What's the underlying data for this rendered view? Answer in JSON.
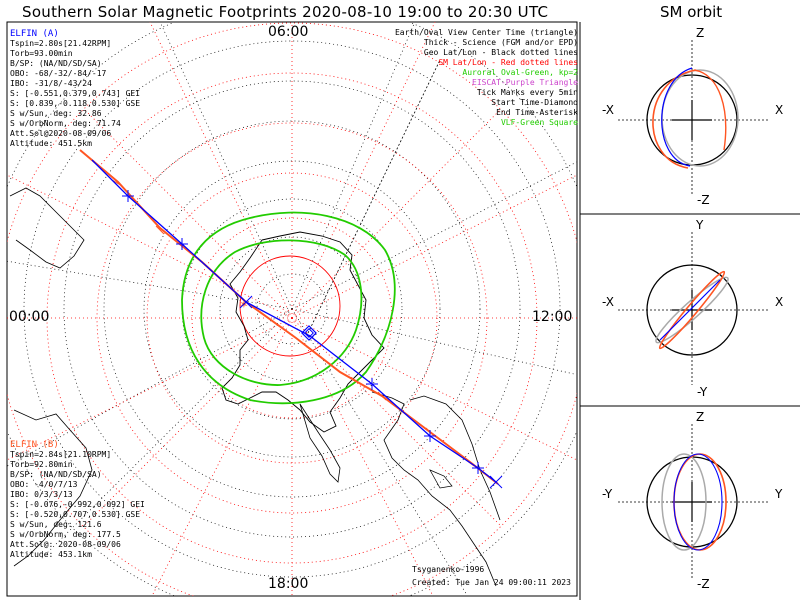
{
  "title": "Southern Solar Magnetic Footprints 2020-08-10 19:00 to 20:30 UTC",
  "sm_title": "SM orbit",
  "hours": {
    "top": "06:00",
    "left": "00:00",
    "right": "12:00",
    "bottom": "18:00"
  },
  "legend": [
    {
      "text": "Earth/Oval View Center Time (triangle)",
      "color": "#000000"
    },
    {
      "text": "Thick - Science (FGM and/or EPD)",
      "color": "#000000"
    },
    {
      "text": "Geo Lat/Lon - Black dotted lines",
      "color": "#000000"
    },
    {
      "text": "SM Lat/Lon - Red dotted lines",
      "color": "#ff0000"
    },
    {
      "text": "Auroral Oval-Green, kp=2",
      "color": "#22cc00"
    },
    {
      "text": "EISCAT-Purple Triangle",
      "color": "#cc44cc"
    },
    {
      "text": "Tick Marks every 5min",
      "color": "#000000"
    },
    {
      "text": "Start Time-Diamond",
      "color": "#000000"
    },
    {
      "text": "End Time-Asterisk",
      "color": "#000000"
    },
    {
      "text": "VLF-Green Square",
      "color": "#22cc00"
    }
  ],
  "elfin_a": {
    "name": "ELFIN (A)",
    "color": "#0000ff",
    "lines": [
      "Tspin=2.80s[21.42RPM]",
      "Torb=93.00min",
      "B/SP: (NA/ND/SD/SA)",
      "OBO: -68/-32/-84/-17",
      "IBO: -31/8/-43/24",
      "S: [-0.551,0.379,0.743] GEI",
      "S: [0.839,-0.118,0.530] GSE",
      "S w/Sun, deg: 32.86",
      "S w/OrbNorm, deg: 71.74",
      "Att.Sol@2020-08-09/06",
      "Altitude: 451.5km"
    ]
  },
  "elfin_b": {
    "name": "ELFIN (B)",
    "color": "#ff5522",
    "lines": [
      "Tspin=2.84s[21.10RPM]",
      "Torb=92.80min",
      "B/SP: (NA/ND/SD/SA)",
      "OBO: -4/0/7/13",
      "IBO: 0/3/3/13",
      "S: [-0.076,-0.992,0.092] GEI",
      "S: [-0.520,0.707,0.530] GSE",
      "S w/Sun, deg: 121.6",
      "S w/OrbNorm, deg: 177.5",
      "Att.Sol@: 2020-08-09/06",
      "Altitude: 453.1km"
    ]
  },
  "credit": "Tsyganenko-1996",
  "created": "Created: Tue Jan 24 09:00:11 2023",
  "panels": [
    {
      "top": "Z",
      "bottom": "-Z",
      "left": "-X",
      "right": "X"
    },
    {
      "top": "Y",
      "bottom": "-Y",
      "left": "-X",
      "right": "X"
    },
    {
      "top": "Z",
      "bottom": "-Z",
      "left": "-Y",
      "right": "Y"
    }
  ],
  "colors": {
    "elfin_a": "#0000ff",
    "elfin_b": "#ff5522",
    "sm_grid": "#ff0000",
    "oval": "#22cc00",
    "orbit_gray": "#aaaaaa"
  }
}
